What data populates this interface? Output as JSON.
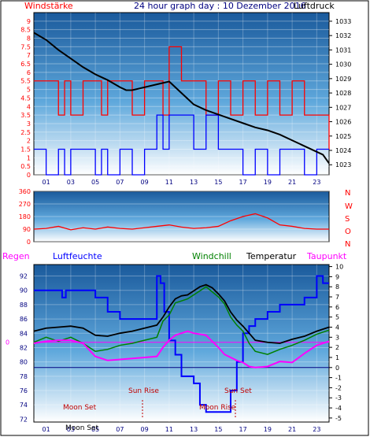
{
  "header": {
    "left": "Windstärke",
    "center": "24 hour graph day : 10 Dezember 2016",
    "right": "Luftdruck"
  },
  "direction_labels": [
    "N",
    "W",
    "S",
    "O",
    "N"
  ],
  "bottom_header": {
    "regen": "Regen",
    "luftfeuchte": "Luftfeuchte",
    "windchill": "Windchill",
    "temperatur": "Temperatur",
    "taupunkt": "Taupunkt"
  },
  "events": {
    "sun_rise": "Sun Rise",
    "sun_set": "Sun Set",
    "moon_set_a": "Moon Set",
    "moon_rise": "Moon Rise",
    "moon_set_b": "Moon Set"
  },
  "colors": {
    "outer_bg": "#ffffff",
    "frame": "#000000",
    "plot_top": "#1a5a9c",
    "plot_bottom": "#ffffff",
    "wind": "#ff0000",
    "gust": "#0000ff",
    "pressure": "#000000",
    "humidity": "#0000ff",
    "temperature": "#000000",
    "windchill": "#008000",
    "dewpoint": "#ff00ff",
    "event_text": "#c00000",
    "windstaerke_title": "#ff0000",
    "regen_title": "#ff00ff",
    "luftfeuchte_title": "#0000ff",
    "windchill_title": "#008000",
    "temperatur_title": "#000000",
    "taupunkt_title": "#ff00ff",
    "zero_line": "#ff00ff",
    "center_title": "#000080"
  },
  "chart_data": [
    {
      "type": "line",
      "id": "wind_pressure",
      "title": "24 hour graph day : 10 Dezember 2016",
      "x_ticks": [
        "01",
        "03",
        "05",
        "07",
        "09",
        "11",
        "13",
        "15",
        "17",
        "19",
        "21",
        "23"
      ],
      "x_range_hours": [
        0,
        24
      ],
      "y_left_label": "Windstärke",
      "y_left_ticks": [
        "0",
        "0.5",
        "1",
        "1.5",
        "2",
        "2.5",
        "3",
        "3.5",
        "4",
        "4.5",
        "5",
        "5.5",
        "6",
        "6.5",
        "7",
        "7.5",
        "8",
        "8.5",
        "9"
      ],
      "y_left_range": [
        0,
        9.5
      ],
      "y_right_label": "Luftdruck",
      "y_right_ticks": [
        "1023",
        "1024",
        "1025",
        "1026",
        "1027",
        "1028",
        "1029",
        "1030",
        "1031",
        "1032",
        "1033"
      ],
      "y_right_range": [
        1022.3,
        1033.6
      ],
      "grid": true,
      "series": [
        {
          "name": "Luftdruck",
          "axis": "right",
          "x": [
            0,
            1,
            2,
            3,
            4,
            5,
            6,
            7,
            7.5,
            8,
            9,
            10,
            11,
            12,
            13,
            14,
            15,
            16,
            17,
            18,
            19,
            20,
            21,
            22,
            23,
            23.5,
            24
          ],
          "values": [
            1032.2,
            1031.7,
            1031.0,
            1030.4,
            1029.8,
            1029.3,
            1028.9,
            1028.4,
            1028.2,
            1028.2,
            1028.4,
            1028.6,
            1028.8,
            1028.0,
            1027.2,
            1026.8,
            1026.5,
            1026.2,
            1025.9,
            1025.6,
            1025.4,
            1025.1,
            1024.7,
            1024.3,
            1023.9,
            1023.7,
            1023.1
          ]
        },
        {
          "name": "Windstärke",
          "axis": "left",
          "style": "step",
          "x": [
            0,
            1,
            2,
            2.5,
            3,
            4,
            5,
            5.5,
            6,
            7,
            8,
            9,
            10,
            10.5,
            11,
            12,
            13,
            14,
            15,
            16,
            17,
            18,
            19,
            20,
            21,
            22,
            23,
            24
          ],
          "values": [
            5.5,
            5.5,
            3.5,
            5.5,
            3.5,
            5.5,
            5.5,
            3.5,
            5.5,
            5.5,
            3.5,
            5.5,
            5.5,
            3.5,
            7.5,
            5.5,
            5.5,
            3.5,
            5.5,
            3.5,
            5.5,
            3.5,
            5.5,
            3.5,
            5.5,
            3.5,
            3.5,
            1.5
          ]
        },
        {
          "name": "Böen",
          "axis": "left",
          "style": "step",
          "x": [
            0,
            1,
            2,
            2.5,
            3,
            4,
            5,
            5.5,
            6,
            7,
            8,
            9,
            10,
            10.5,
            11,
            12,
            13,
            14,
            15,
            16,
            17,
            18,
            19,
            20,
            21,
            22,
            23,
            24
          ],
          "values": [
            1.5,
            0,
            1.5,
            0,
            1.5,
            1.5,
            0,
            1.5,
            0,
            1.5,
            0,
            1.5,
            3.5,
            1.5,
            3.5,
            3.5,
            1.5,
            3.5,
            1.5,
            1.5,
            0,
            1.5,
            0,
            1.5,
            1.5,
            0,
            1.5,
            1.5
          ]
        }
      ]
    },
    {
      "type": "line",
      "id": "wind_direction",
      "x_range_hours": [
        0,
        24
      ],
      "y_ticks": [
        "0",
        "90",
        "180",
        "270",
        "360"
      ],
      "y_range": [
        0,
        360
      ],
      "series": [
        {
          "name": "Windrichtung",
          "x": [
            0,
            1,
            2,
            3,
            4,
            5,
            6,
            7,
            8,
            9,
            10,
            11,
            12,
            13,
            14,
            15,
            16,
            17,
            18,
            19,
            20,
            21,
            22,
            23,
            24
          ],
          "values": [
            90,
            95,
            110,
            85,
            100,
            90,
            105,
            95,
            90,
            100,
            110,
            120,
            105,
            95,
            100,
            110,
            150,
            180,
            200,
            170,
            120,
            110,
            95,
            90,
            90
          ]
        }
      ]
    },
    {
      "type": "line",
      "id": "temperature_humidity",
      "x_ticks": [
        "01",
        "03",
        "05",
        "07",
        "09",
        "11",
        "13",
        "15",
        "17",
        "19",
        "21",
        "23"
      ],
      "x_range_hours": [
        0,
        24
      ],
      "y_left_ticks": [
        "72",
        "74",
        "76",
        "78",
        "80",
        "82",
        "84",
        "86",
        "88",
        "90",
        "92"
      ],
      "y_left_range": [
        71.6,
        93.6
      ],
      "y_left_zero_label": "0",
      "y_right_ticks": [
        "-5",
        "-4",
        "-3",
        "-2",
        "-1",
        "0",
        "1",
        "2",
        "3",
        "4",
        "5",
        "6",
        "7",
        "8",
        "9",
        "10"
      ],
      "y_right_range": [
        -5.4,
        10.2
      ],
      "series": [
        {
          "name": "Luftfeuchte",
          "axis": "left",
          "style": "step",
          "x": [
            0,
            2,
            2.3,
            2.6,
            5,
            6,
            7,
            9,
            10,
            10.3,
            10.6,
            11,
            11.5,
            12,
            13,
            13.5,
            14,
            14.5,
            15,
            15.5,
            16,
            16.5,
            17,
            17.5,
            18,
            19,
            20,
            21,
            22,
            23,
            23.5,
            24
          ],
          "values": [
            90,
            90,
            89,
            90,
            89,
            87,
            86,
            86,
            92,
            91,
            87,
            83,
            81,
            78,
            77,
            74,
            73,
            73,
            73,
            73,
            76,
            80,
            84,
            85,
            86,
            87,
            88,
            88,
            89,
            92,
            91,
            91
          ]
        },
        {
          "name": "Temperatur",
          "axis": "right",
          "x": [
            0,
            1,
            2,
            3,
            4,
            5,
            6,
            7,
            8,
            9,
            10,
            10.5,
            11,
            11.5,
            12,
            12.5,
            13,
            13.5,
            14,
            14.5,
            15,
            15.5,
            16,
            16.5,
            17,
            17.5,
            18,
            19,
            20,
            21,
            22,
            23,
            24
          ],
          "values": [
            3.6,
            3.9,
            4.0,
            4.1,
            3.9,
            3.2,
            3.1,
            3.4,
            3.6,
            3.9,
            4.2,
            5.0,
            6.0,
            6.8,
            7.1,
            7.2,
            7.6,
            8.0,
            8.2,
            7.9,
            7.3,
            6.6,
            5.5,
            4.7,
            4.1,
            3.4,
            2.7,
            2.5,
            2.4,
            2.8,
            3.1,
            3.6,
            4.0
          ]
        },
        {
          "name": "Windchill",
          "axis": "right",
          "x": [
            0,
            1,
            2,
            3,
            4,
            5,
            6,
            7,
            8,
            9,
            10,
            10.5,
            11,
            11.5,
            12,
            12.5,
            13,
            13.5,
            14,
            14.5,
            15,
            15.5,
            16,
            16.5,
            17,
            17.5,
            18,
            19,
            20,
            21,
            22,
            23,
            24
          ],
          "values": [
            2.5,
            3.0,
            2.6,
            3.0,
            2.4,
            1.6,
            1.8,
            2.2,
            2.4,
            2.7,
            3.0,
            4.6,
            5.2,
            6.4,
            6.6,
            6.8,
            7.2,
            7.6,
            8.0,
            7.5,
            7.0,
            6.3,
            5.0,
            4.2,
            3.6,
            2.4,
            1.6,
            1.3,
            1.8,
            2.2,
            2.7,
            3.3,
            3.7
          ]
        },
        {
          "name": "Taupunkt",
          "axis": "right",
          "x": [
            0,
            1,
            2,
            3,
            4,
            5,
            6,
            7,
            8,
            9,
            10,
            10.5,
            11,
            11.5,
            12,
            12.5,
            13,
            13.5,
            14,
            14.5,
            15,
            15.5,
            16,
            16.5,
            17,
            17.5,
            18,
            19,
            20,
            21,
            22,
            23,
            24
          ],
          "values": [
            2.4,
            2.6,
            2.7,
            2.7,
            2.4,
            1.1,
            0.7,
            0.8,
            0.9,
            1.0,
            1.1,
            2.0,
            2.7,
            3.2,
            3.4,
            3.6,
            3.4,
            3.3,
            3.2,
            2.6,
            2.0,
            1.3,
            1.0,
            0.7,
            0.5,
            0.1,
            0.0,
            0.1,
            0.6,
            0.5,
            1.4,
            2.2,
            2.6
          ]
        }
      ]
    }
  ]
}
